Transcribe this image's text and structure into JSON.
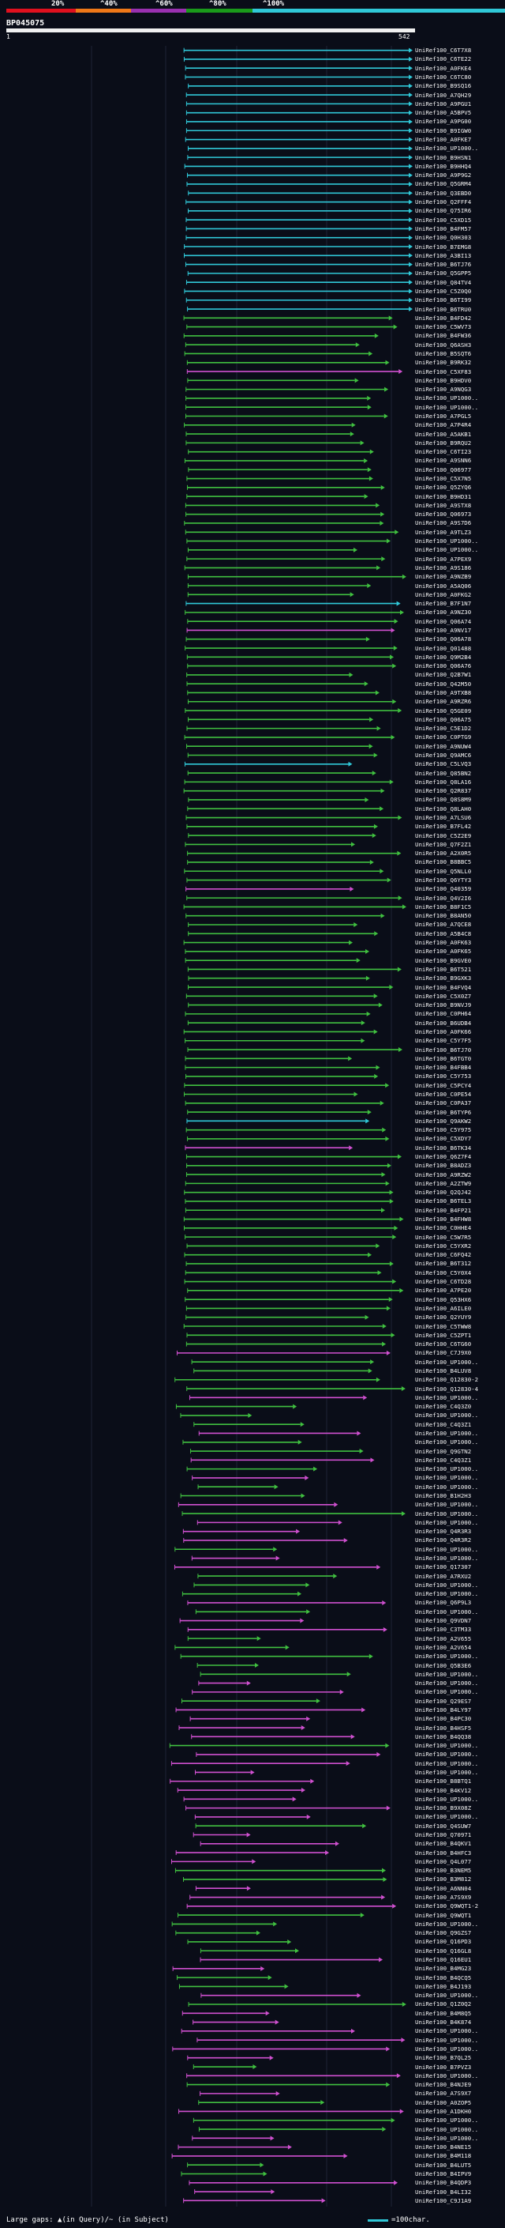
{
  "legend": {
    "labels": [
      "20%",
      "^40%",
      "^60%",
      "^80%",
      "^100%"
    ],
    "colors": [
      "#e0101e",
      "#f07818",
      "#9a30b0",
      "#1a9a1a",
      "#30c8d8"
    ]
  },
  "query": {
    "name": "BP045075",
    "start_label": "1",
    "end_label": "542"
  },
  "footer": {
    "gaps_text": "Large gaps: ▲(in Query)/~ (in Subject)",
    "scale_text": "=100char."
  },
  "hits": [
    "UniRef100_C6T7X8",
    "UniRef100_C6TE22",
    "UniRef100_A0FKE4",
    "UniRef100_C6TC80",
    "UniRef100_B9SQ16",
    "UniRef100_A7QH29",
    "UniRef100_A9PGU1",
    "UniRef100_A5BPV5",
    "UniRef100_A9PG00",
    "UniRef100_B9IGW0",
    "UniRef100_A0FKE7",
    "UniRef100_UP1000..",
    "UniRef100_B9HSN1",
    "UniRef100_B9HHQ4",
    "UniRef100_A9P9G2",
    "UniRef100_Q5GRM4",
    "UniRef100_Q3EBD0",
    "UniRef100_Q2FFF4",
    "UniRef100_Q75IR6",
    "UniRef100_C5XD15",
    "UniRef100_B4FM57",
    "UniRef100_Q0H303",
    "UniRef100_B7EMG8",
    "UniRef100_A3BI13",
    "UniRef100_B6TJ76",
    "UniRef100_Q5GPP5",
    "UniRef100_Q84TV4",
    "UniRef100_C5Z0Q0",
    "UniRef100_B6TI99",
    "UniRef100_B6TRU0",
    "UniRef100_B4FD42",
    "UniRef100_C5WV73",
    "UniRef100_B4FW36",
    "UniRef100_Q6ASH3",
    "UniRef100_B5SQT6",
    "UniRef100_B9RK32",
    "UniRef100_C5XF83",
    "UniRef100_B9HDV0",
    "UniRef100_A9NQG3",
    "UniRef100_UP1000..",
    "UniRef100_UP1000..",
    "UniRef100_A7PGL5",
    "UniRef100_A7P4R4",
    "UniRef100_A5AKB1",
    "UniRef100_B9RQU2",
    "UniRef100_C6TI23",
    "UniRef100_A9SNN6",
    "UniRef100_Q06977",
    "UniRef100_C5X7N5",
    "UniRef100_Q5ZYQ6",
    "UniRef100_B9HD31",
    "UniRef100_A9STX8",
    "UniRef100_Q06973",
    "UniRef100_A9S7D6",
    "UniRef100_A9TLZ3",
    "UniRef100_UP1000..",
    "UniRef100_UP1000..",
    "UniRef100_A7PEX9",
    "UniRef100_A9S186",
    "UniRef100_A9NZB9",
    "UniRef100_A5AQ06",
    "UniRef100_A0FKG2",
    "UniRef100_B7F1N7",
    "UniRef100_A9NZ30",
    "UniRef100_Q06A74",
    "UniRef100_A9NV17",
    "UniRef100_Q06A78",
    "UniRef100_Q01488",
    "UniRef100_Q9M2B4",
    "UniRef100_Q06A76",
    "UniRef100_Q2B7W1",
    "UniRef100_Q42M50",
    "UniRef100_A9TXB8",
    "UniRef100_A9RZR6",
    "UniRef100_Q5GE09",
    "UniRef100_Q06A75",
    "UniRef100_C5E1D2",
    "UniRef100_C0PTG9",
    "UniRef100_A9NUW4",
    "UniRef100_Q9AMC6",
    "UniRef100_C5LVQ3",
    "UniRef100_Q85BN2",
    "UniRef100_Q8LA16",
    "UniRef100_Q2R837",
    "UniRef100_Q8S8M9",
    "UniRef100_Q8LAH0",
    "UniRef100_A7LSU6",
    "UniRef100_B7FL42",
    "UniRef100_C5Z2E9",
    "UniRef100_Q7F2Z1",
    "UniRef100_A2X0R5",
    "UniRef100_B8BBC5",
    "UniRef100_Q5NLL0",
    "UniRef100_Q6YTY3",
    "UniRef100_Q40359",
    "UniRef100_Q4V2I6",
    "UniRef100_B8F1C5",
    "UniRef100_B8AN50",
    "UniRef100_A7QCE8",
    "UniRef100_A5B4C8",
    "UniRef100_A0FK63",
    "UniRef100_A0FK65",
    "UniRef100_B9GVE0",
    "UniRef100_B6T521",
    "UniRef100_B9GXK3",
    "UniRef100_B4FVQ4",
    "UniRef100_C5X0Z7",
    "UniRef100_B9NVJ9",
    "UniRef100_C0PH64",
    "UniRef100_B6UDB4",
    "UniRef100_A0FK66",
    "UniRef100_C5Y7F5",
    "UniRef100_B6TJ70",
    "UniRef100_B6TGT0",
    "UniRef100_B4FBB4",
    "UniRef100_C5Y753",
    "UniRef100_C5PCY4",
    "UniRef100_C0PE54",
    "UniRef100_C0PA37",
    "UniRef100_B6TYP6",
    "UniRef100_Q9AKW2",
    "UniRef100_C5Y975",
    "UniRef100_C5XDY7",
    "UniRef100_B6TK34",
    "UniRef100_Q6Z7F4",
    "UniRef100_B8ADZ3",
    "UniRef100_A9RZW2",
    "UniRef100_A2ZTW9",
    "UniRef100_Q2QJ42",
    "UniRef100_B6TEL3",
    "UniRef100_B4FP21",
    "UniRef100_B4FHW8",
    "UniRef100_C0HHE4",
    "UniRef100_C5W7R5",
    "UniRef100_C5YXR2",
    "UniRef100_C6FQ42",
    "UniRef100_B6T312",
    "UniRef100_C5Y0X4",
    "UniRef100_C6TD28",
    "UniRef100_A7PE20",
    "UniRef100_Q53HX6",
    "UniRef100_A6ILE0",
    "UniRef100_Q2YUY9",
    "UniRef100_C5TWW8",
    "UniRef100_C5ZPT1",
    "UniRef100_C6TG60",
    "UniRef100_C7J9X0",
    "UniRef100_UP1000..",
    "UniRef100_B4LUV8",
    "UniRef100_Q12830-2",
    "UniRef100_Q12830-4",
    "UniRef100_UP1000..",
    "UniRef100_C4Q3Z0",
    "UniRef100_UP1000..",
    "UniRef100_C4Q3Z1",
    "UniRef100_UP1000..",
    "UniRef100_UP1000..",
    "UniRef100_Q9GTN2",
    "UniRef100_C4Q3Z1",
    "UniRef100_UP1000..",
    "UniRef100_UP1000..",
    "UniRef100_UP1000..",
    "UniRef100_B1H2H3",
    "UniRef100_UP1000..",
    "UniRef100_UP1000..",
    "UniRef100_UP1000..",
    "UniRef100_Q4R3R3",
    "UniRef100_Q4R3R2",
    "UniRef100_UP1000..",
    "UniRef100_UP1000..",
    "UniRef100_Q17307",
    "UniRef100_A7RXU2",
    "UniRef100_UP1000..",
    "UniRef100_UP1000..",
    "UniRef100_Q6P9L3",
    "UniRef100_UP1000..",
    "UniRef100_Q9VDN7",
    "UniRef100_C3TM33",
    "UniRef100_A2V655",
    "UniRef100_A2V654",
    "UniRef100_UP1000..",
    "UniRef100_Q5B3E6",
    "UniRef100_UP1000..",
    "UniRef100_UP1000..",
    "UniRef100_UP1000..",
    "UniRef100_Q29ES7",
    "UniRef100_B4LY97",
    "UniRef100_B4PC30",
    "UniRef100_B4HSF5",
    "UniRef100_B4QQ38",
    "UniRef100_UP1000..",
    "UniRef100_UP1000..",
    "UniRef100_UP1000..",
    "UniRef100_UP1000..",
    "UniRef100_B8BTQ1",
    "UniRef100_B4KV12",
    "UniRef100_UP1000..",
    "UniRef100_B9X08Z",
    "UniRef100_UP1000..",
    "UniRef100_Q4SUW7",
    "UniRef100_Q70971",
    "UniRef100_B4QKV1",
    "UniRef100_B4HFC3",
    "UniRef100_Q4L077",
    "UniRef100_B3NEM5",
    "UniRef100_B3M812",
    "UniRef100_A6NN04",
    "UniRef100_A7S9X9",
    "UniRef100_Q9WQT1-2",
    "UniRef100_Q9WQT1",
    "UniRef100_UP1000..",
    "UniRef100_Q9GZS7",
    "UniRef100_Q16PD3",
    "UniRef100_Q16GL8",
    "UniRef100_Q16EU1",
    "UniRef100_B4MG23",
    "UniRef100_B4QCQ5",
    "UniRef100_B4J193",
    "UniRef100_UP1000..",
    "UniRef100_Q1Z0Q2",
    "UniRef100_B4M8Q5",
    "UniRef100_B4K874",
    "UniRef100_UP1000..",
    "UniRef100_UP1000..",
    "UniRef100_UP1000..",
    "UniRef100_B7QL25",
    "UniRef100_B7PVZ3",
    "UniRef100_UP1000..",
    "UniRef100_B4NJE9",
    "UniRef100_A7S9X7",
    "UniRef100_A0ZOP5",
    "UniRef100_A1DKH0",
    "UniRef100_UP1000..",
    "UniRef100_UP1000..",
    "UniRef100_UP1000..",
    "UniRef100_B4NE15",
    "UniRef100_B4M118",
    "UniRef100_B4LUT5",
    "UniRef100_B4IPV9",
    "UniRef100_B4QDP3",
    "UniRef100_B4LI32",
    "UniRef100_C9J1A9"
  ]
}
